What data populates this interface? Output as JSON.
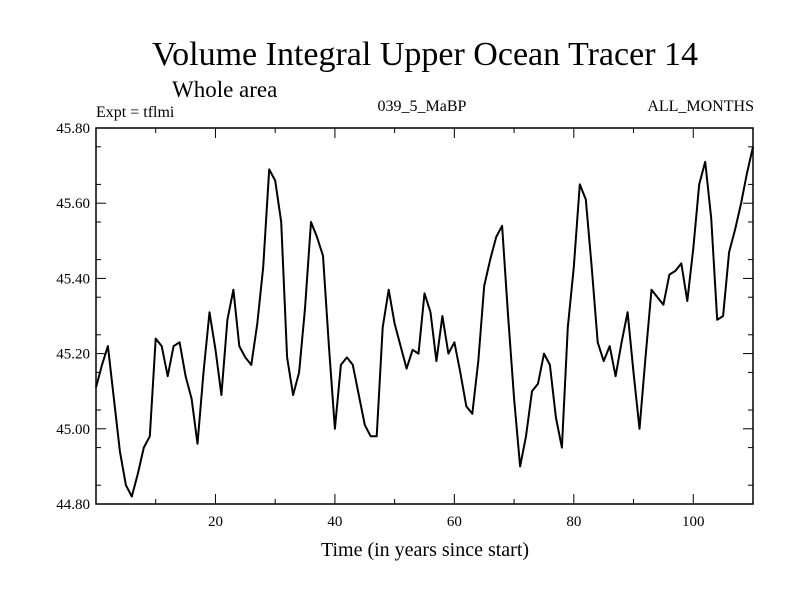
{
  "chart_data": {
    "type": "line",
    "title": "Volume Integral Upper Ocean Tracer 14",
    "subtitle": "Whole area",
    "experiment_label": "Expt = tflmi",
    "run_label": "039_5_MaBP",
    "period_label": "ALL_MONTHS",
    "xlabel": "Time (in years since start)",
    "ylabel": "",
    "xlim": [
      0,
      110
    ],
    "ylim": [
      44.8,
      45.8
    ],
    "x_ticks": [
      20,
      40,
      60,
      80,
      100
    ],
    "y_ticks": [
      "44.80",
      "45.00",
      "45.20",
      "45.40",
      "45.60",
      "45.80"
    ],
    "grid": false,
    "series": [
      {
        "name": "Tracer 14",
        "x": [
          0,
          1,
          2,
          3,
          4,
          5,
          6,
          7,
          8,
          9,
          10,
          11,
          12,
          13,
          14,
          15,
          16,
          17,
          18,
          19,
          20,
          21,
          22,
          23,
          24,
          25,
          26,
          27,
          28,
          29,
          30,
          31,
          32,
          33,
          34,
          35,
          36,
          37,
          38,
          39,
          40,
          41,
          42,
          43,
          44,
          45,
          46,
          47,
          48,
          49,
          50,
          51,
          52,
          53,
          54,
          55,
          56,
          57,
          58,
          59,
          60,
          61,
          62,
          63,
          64,
          65,
          66,
          67,
          68,
          69,
          70,
          71,
          72,
          73,
          74,
          75,
          76,
          77,
          78,
          79,
          80,
          81,
          82,
          83,
          84,
          85,
          86,
          87,
          88,
          89,
          90,
          91,
          92,
          93,
          94,
          95,
          96,
          97,
          98,
          99,
          100,
          101,
          102,
          103,
          104,
          105,
          106,
          107,
          108,
          109,
          110
        ],
        "values": [
          45.11,
          45.17,
          45.22,
          45.08,
          44.94,
          44.85,
          44.82,
          44.88,
          44.95,
          44.98,
          45.24,
          45.22,
          45.14,
          45.22,
          45.23,
          45.14,
          45.08,
          44.96,
          45.15,
          45.31,
          45.21,
          45.09,
          45.29,
          45.37,
          45.22,
          45.19,
          45.17,
          45.28,
          45.43,
          45.69,
          45.66,
          45.55,
          45.19,
          45.09,
          45.15,
          45.32,
          45.55,
          45.51,
          45.46,
          45.22,
          45.0,
          45.17,
          45.19,
          45.17,
          45.09,
          45.01,
          44.98,
          44.98,
          45.27,
          45.37,
          45.28,
          45.22,
          45.16,
          45.21,
          45.2,
          45.36,
          45.31,
          45.18,
          45.3,
          45.2,
          45.23,
          45.15,
          45.06,
          45.04,
          45.18,
          45.38,
          45.45,
          45.51,
          45.54,
          45.3,
          45.08,
          44.9,
          44.98,
          45.1,
          45.12,
          45.2,
          45.17,
          45.03,
          44.95,
          45.27,
          45.43,
          45.65,
          45.61,
          45.43,
          45.23,
          45.18,
          45.22,
          45.14,
          45.23,
          45.31,
          45.15,
          45.0,
          45.19,
          45.37,
          45.35,
          45.33,
          45.41,
          45.42,
          45.44,
          45.34,
          45.48,
          45.65,
          45.71,
          45.56,
          45.29,
          45.3,
          45.47,
          45.53,
          45.6,
          45.68,
          45.75
        ]
      }
    ]
  }
}
